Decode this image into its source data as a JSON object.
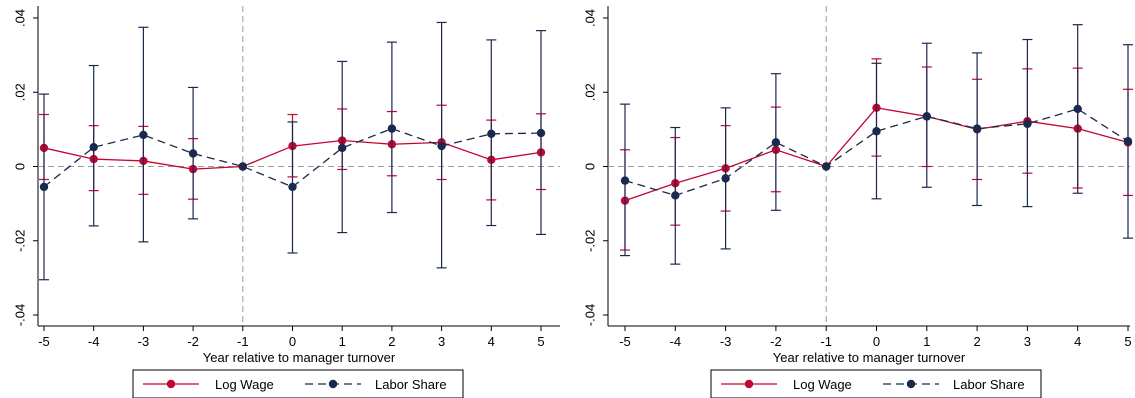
{
  "colors": {
    "log_wage": "#c10534",
    "labor_share": "#1a2a4e",
    "axis": "#000000",
    "reference_line": "#9a9a9a",
    "legend_border": "#000000"
  },
  "chart_data": [
    {
      "type": "line",
      "xlabel": "Year relative to manager turnover",
      "ylabel": "",
      "x": [
        -5,
        -4,
        -3,
        -2,
        -1,
        0,
        1,
        2,
        3,
        4,
        5
      ],
      "x_ticks": [
        "-5",
        "-4",
        "-3",
        "-2",
        "-1",
        "0",
        "1",
        "2",
        "3",
        "4",
        "5"
      ],
      "y_ticks": [
        ".04",
        ".02",
        "0",
        "-.02",
        "-.04"
      ],
      "y_tick_values": [
        0.04,
        0.02,
        0,
        -0.02,
        -0.04
      ],
      "ylim": [
        -0.04,
        0.04
      ],
      "xlim": [
        -5,
        5
      ],
      "grid": false,
      "reference_lines": {
        "vertical_x": -1,
        "horizontal_y": 0,
        "style": "dashed"
      },
      "legend_position": "bottom",
      "series": [
        {
          "name": "Log Wage",
          "style": "solid-with-markers",
          "values": [
            0.005,
            0.002,
            0.0015,
            -0.0007,
            0.0,
            0.0055,
            0.007,
            0.006,
            0.0065,
            0.0018,
            0.0038
          ],
          "ci_low": [
            -0.0035,
            -0.0065,
            -0.0075,
            -0.0088,
            0.0,
            -0.0028,
            -0.0008,
            -0.0025,
            -0.0035,
            -0.009,
            -0.0062
          ],
          "ci_high": [
            0.014,
            0.011,
            0.0108,
            0.0075,
            0.0,
            0.014,
            0.0155,
            0.0148,
            0.0165,
            0.0125,
            0.0142
          ]
        },
        {
          "name": "Labor Share",
          "style": "dashed-with-markers",
          "values": [
            -0.0055,
            0.0052,
            0.0085,
            0.0035,
            0.0,
            -0.0055,
            0.005,
            0.0102,
            0.0055,
            0.0088,
            0.009
          ],
          "ci_low": [
            -0.0305,
            -0.016,
            -0.0203,
            -0.0141,
            0.0,
            -0.0233,
            -0.0178,
            -0.0124,
            -0.0273,
            -0.0159,
            -0.0183
          ],
          "ci_high": [
            0.0195,
            0.0272,
            0.0375,
            0.0213,
            0.0,
            0.012,
            0.0283,
            0.0335,
            0.0388,
            0.0341,
            0.0366
          ]
        }
      ]
    },
    {
      "type": "line",
      "xlabel": "Year relative to manager turnover",
      "ylabel": "",
      "x": [
        -5,
        -4,
        -3,
        -2,
        -1,
        0,
        1,
        2,
        3,
        4,
        5
      ],
      "x_ticks": [
        "-5",
        "-4",
        "-3",
        "-2",
        "-1",
        "0",
        "1",
        "2",
        "3",
        "4",
        "5"
      ],
      "y_ticks": [
        ".04",
        ".02",
        "0",
        "-.02",
        "-.04"
      ],
      "y_tick_values": [
        0.04,
        0.02,
        0,
        -0.02,
        -0.04
      ],
      "ylim": [
        -0.04,
        0.04
      ],
      "xlim": [
        -5,
        5
      ],
      "grid": false,
      "reference_lines": {
        "vertical_x": -1,
        "horizontal_y": 0,
        "style": "dashed"
      },
      "legend_position": "bottom",
      "series": [
        {
          "name": "Log Wage",
          "style": "solid-with-markers",
          "values": [
            -0.0092,
            -0.0045,
            -0.0005,
            0.0045,
            0.0,
            0.0158,
            0.0135,
            0.01,
            0.0122,
            0.0102,
            0.0065
          ],
          "ci_low": [
            -0.0225,
            -0.0158,
            -0.012,
            -0.0068,
            0.0,
            0.0028,
            0.0,
            -0.0035,
            -0.0018,
            -0.0058,
            -0.0078
          ],
          "ci_high": [
            0.0045,
            0.0078,
            0.011,
            0.016,
            0.0,
            0.029,
            0.0268,
            0.0235,
            0.0263,
            0.0265,
            0.0208
          ]
        },
        {
          "name": "Labor Share",
          "style": "dashed-with-markers",
          "values": [
            -0.0038,
            -0.0078,
            -0.0032,
            0.0065,
            0.0,
            0.0095,
            0.0135,
            0.0102,
            0.0115,
            0.0155,
            0.0068
          ],
          "ci_low": [
            -0.024,
            -0.0263,
            -0.0222,
            -0.0118,
            0.0,
            -0.0087,
            -0.0056,
            -0.0105,
            -0.0108,
            -0.0072,
            -0.0193
          ],
          "ci_high": [
            0.0168,
            0.0105,
            0.0158,
            0.025,
            0.0,
            0.0278,
            0.0332,
            0.0306,
            0.0342,
            0.0382,
            0.0328
          ]
        }
      ]
    }
  ]
}
